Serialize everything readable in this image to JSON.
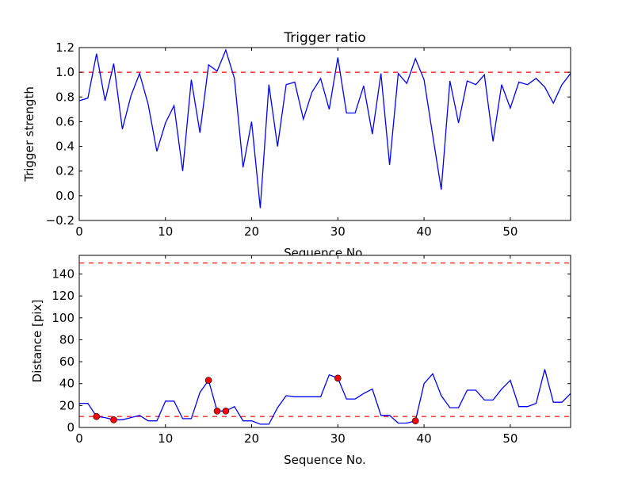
{
  "chart_data": [
    {
      "type": "line",
      "title": "Trigger ratio",
      "xlabel": "Sequence No.",
      "ylabel": "Trigger strength",
      "xlim": [
        0,
        57
      ],
      "ylim": [
        -0.2,
        1.2
      ],
      "xticks": [
        0,
        10,
        20,
        30,
        40,
        50
      ],
      "yticks": [
        -0.2,
        0.0,
        0.2,
        0.4,
        0.6,
        0.8,
        1.0,
        1.2
      ],
      "ytick_labels": [
        "−0.2",
        "0.0",
        "0.2",
        "0.4",
        "0.6",
        "0.8",
        "1.0",
        "1.2"
      ],
      "hlines": [
        1.0
      ],
      "series": [
        {
          "name": "trigger strength",
          "color": "#0000ff",
          "values": [
            0.77,
            0.79,
            1.15,
            0.77,
            1.07,
            0.54,
            0.81,
            0.99,
            0.74,
            0.36,
            0.59,
            0.73,
            0.2,
            0.94,
            0.51,
            1.06,
            1.01,
            1.18,
            0.95,
            0.23,
            0.6,
            -0.1,
            0.9,
            0.4,
            0.9,
            0.92,
            0.62,
            0.84,
            0.95,
            0.7,
            1.12,
            0.67,
            0.67,
            0.89,
            0.5,
            0.99,
            0.25,
            0.99,
            0.91,
            1.11,
            0.94,
            0.49,
            0.05,
            0.93,
            0.59,
            0.93,
            0.9,
            0.98,
            0.44,
            0.9,
            0.71,
            0.92,
            0.9,
            0.95,
            0.88,
            0.75,
            0.9,
            0.99
          ]
        }
      ],
      "hline_color": "#ff0000",
      "grid": false
    },
    {
      "type": "line",
      "title": "",
      "xlabel": "Sequence No.",
      "ylabel": "Distance [pix]",
      "xlim": [
        0,
        57
      ],
      "ylim": [
        0,
        157
      ],
      "xticks": [
        0,
        10,
        20,
        30,
        40,
        50
      ],
      "yticks": [
        0,
        20,
        40,
        60,
        80,
        100,
        120,
        140
      ],
      "ytick_labels": [
        "0",
        "20",
        "40",
        "60",
        "80",
        "100",
        "120",
        "140"
      ],
      "hlines": [
        10,
        150
      ],
      "series": [
        {
          "name": "distance",
          "color": "#0000ff",
          "values": [
            22,
            22,
            10,
            9,
            7,
            7,
            9,
            11,
            6,
            6,
            24,
            24,
            8,
            8,
            32,
            43,
            15,
            15,
            19,
            6,
            6,
            3,
            3,
            18,
            29,
            28,
            28,
            28,
            28,
            48,
            45,
            26,
            26,
            31,
            35,
            11,
            11,
            4,
            4,
            6,
            40,
            49,
            29,
            18,
            18,
            34,
            34,
            25,
            25,
            35,
            43,
            19,
            19,
            22,
            53,
            23,
            23,
            31
          ]
        }
      ],
      "markers": {
        "indices": [
          2,
          4,
          15,
          16,
          17,
          30,
          39
        ],
        "color": "#ff0000"
      },
      "hline_color": "#ff0000",
      "grid": false
    }
  ]
}
